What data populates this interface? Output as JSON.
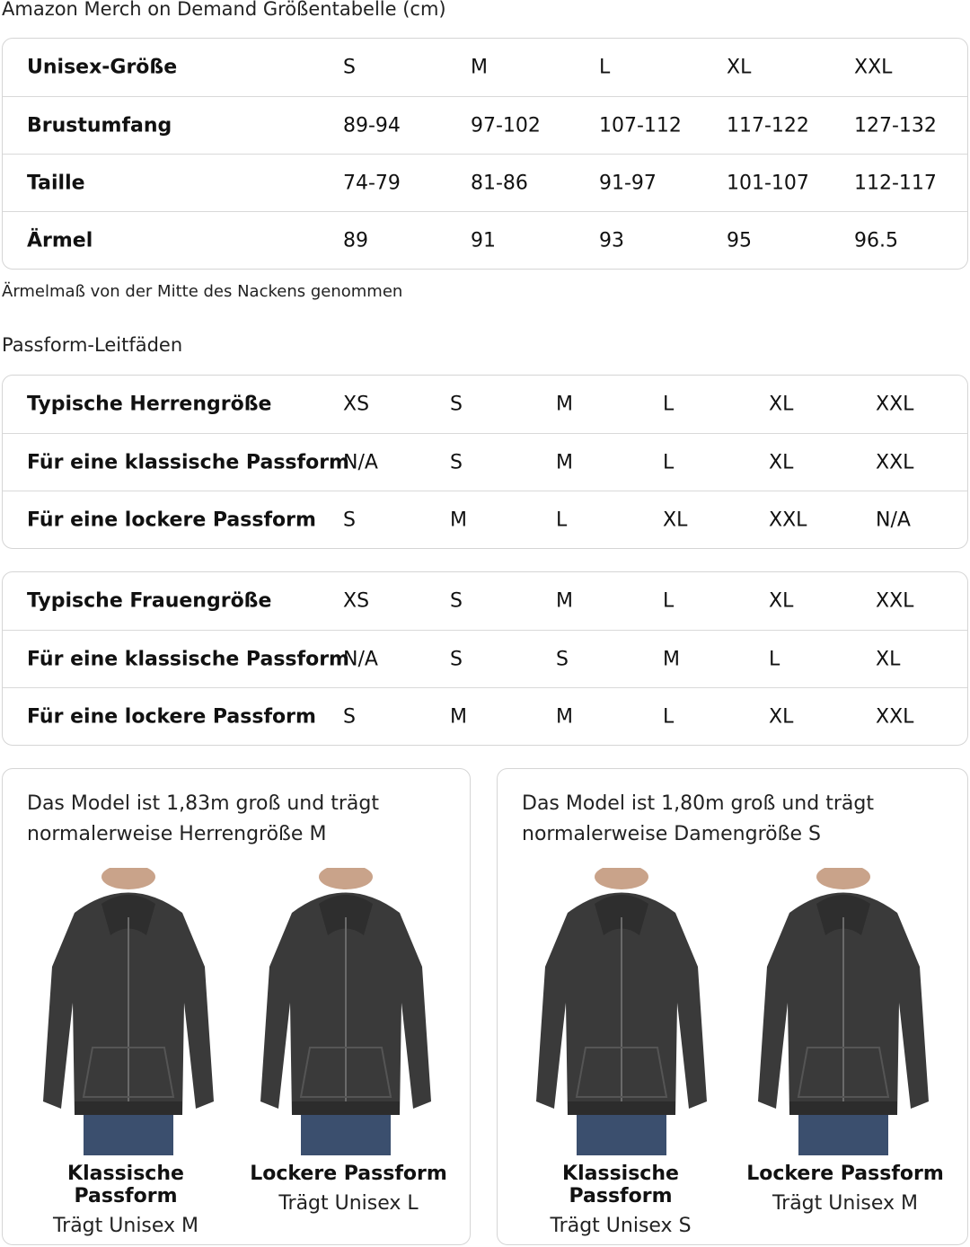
{
  "title": "Amazon Merch on Demand Größentabelle (cm)",
  "size_table": {
    "rows": [
      [
        "Unisex-Größe",
        "S",
        "M",
        "L",
        "XL",
        "XXL"
      ],
      [
        "Brustumfang",
        "89-94",
        "97-102",
        "107-112",
        "117-122",
        "127-132"
      ],
      [
        "Taille",
        "74-79",
        "81-86",
        "91-97",
        "101-107",
        "112-117"
      ],
      [
        "Ärmel",
        "89",
        "91",
        "93",
        "95",
        "96.5"
      ]
    ]
  },
  "note": "Ärmelmaß von der Mitte des Nackens genommen",
  "fit_title": "Passform-Leitfäden",
  "men_table": {
    "rows": [
      [
        "Typische Herrengröße",
        "XS",
        "S",
        "M",
        "L",
        "XL",
        "XXL"
      ],
      [
        "Für eine klassische Passform",
        "N/A",
        "S",
        "M",
        "L",
        "XL",
        "XXL"
      ],
      [
        "Für eine lockere Passform",
        "S",
        "M",
        "L",
        "XL",
        "XXL",
        "N/A"
      ]
    ]
  },
  "women_table": {
    "rows": [
      [
        "Typische Frauengröße",
        "XS",
        "S",
        "M",
        "L",
        "XL",
        "XXL"
      ],
      [
        "Für eine klassische Passform",
        "N/A",
        "S",
        "S",
        "M",
        "L",
        "XL"
      ],
      [
        "Für eine lockere Passform",
        "S",
        "M",
        "M",
        "L",
        "XL",
        "XXL"
      ]
    ]
  },
  "cards": [
    {
      "desc": "Das Model ist 1,83m groß und trägt normalerweise Herrengröße M",
      "figures": [
        {
          "fit": "Klassische Passform",
          "wears": "Trägt Unisex M"
        },
        {
          "fit": "Lockere Passform",
          "wears": "Trägt Unisex L"
        }
      ]
    },
    {
      "desc": "Das Model ist 1,80m groß und trägt normalerweise Damengröße S",
      "figures": [
        {
          "fit": "Klassische Passform",
          "wears": "Trägt Unisex S"
        },
        {
          "fit": "Lockere Passform",
          "wears": "Trägt Unisex M"
        }
      ]
    }
  ],
  "colors": {
    "border": "#d5d5d5",
    "hoodie": "#3a3a3a",
    "jeans": "#3b4f6e"
  }
}
